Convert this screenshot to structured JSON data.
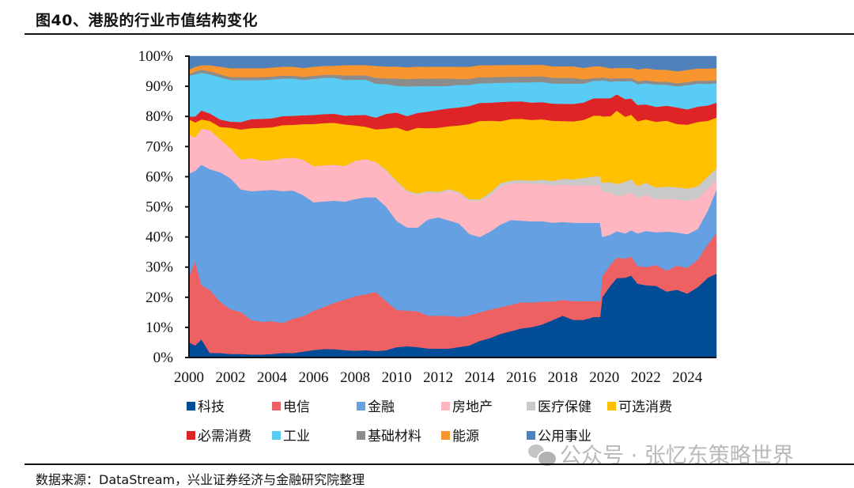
{
  "title": "图40、港股的行业市值结构变化",
  "source": "数据来源：DataStream，兴业证券经济与金融研究院整理",
  "watermark": "公众号 · 张忆东策略世界",
  "chart_data": {
    "type": "area",
    "stacked": true,
    "percent": true,
    "title": "图40、港股的行业市值结构变化",
    "xlabel": "",
    "ylabel": "",
    "xlim": [
      2000.0,
      2025.4
    ],
    "ylim": [
      0,
      100
    ],
    "x_ticks": [
      "2000",
      "2002",
      "2004",
      "2006",
      "2008",
      "2010",
      "2012",
      "2014",
      "2016",
      "2018",
      "2020",
      "2022",
      "2024"
    ],
    "y_ticks": [
      "0%",
      "10%",
      "20%",
      "30%",
      "40%",
      "50%",
      "60%",
      "70%",
      "80%",
      "90%",
      "100%"
    ],
    "grid": false,
    "legend_position": "bottom",
    "x": [
      2000.0,
      2000.3,
      2000.6,
      2001.0,
      2001.5,
      2002.0,
      2002.5,
      2003.0,
      2003.5,
      2004.0,
      2004.5,
      2005.0,
      2005.5,
      2006.0,
      2006.5,
      2007.0,
      2007.5,
      2008.0,
      2008.5,
      2009.0,
      2009.5,
      2010.0,
      2010.5,
      2011.0,
      2011.5,
      2012.0,
      2012.5,
      2013.0,
      2013.5,
      2014.0,
      2014.5,
      2015.0,
      2015.5,
      2016.0,
      2016.5,
      2017.0,
      2017.5,
      2018.0,
      2018.5,
      2019.0,
      2019.5,
      2019.8,
      2019.9,
      2020.3,
      2020.6,
      2021.0,
      2021.3,
      2021.6,
      2022.0,
      2022.5,
      2023.0,
      2023.5,
      2024.0,
      2024.5,
      2025.0,
      2025.4
    ],
    "series": [
      {
        "name": "科技",
        "color": "#004C97",
        "values": [
          5,
          4,
          6,
          1.5,
          1.5,
          1.2,
          1.2,
          1,
          1,
          1.2,
          1.5,
          1.5,
          2,
          2.5,
          2.8,
          2.8,
          2.5,
          2.3,
          2.5,
          2.2,
          2.5,
          3.5,
          3.8,
          3.5,
          3,
          3,
          3,
          3.5,
          4,
          5.5,
          6.5,
          8,
          9,
          10,
          10.5,
          11.5,
          13,
          14.5,
          13,
          13,
          14,
          14,
          20,
          24,
          27,
          27,
          28,
          25,
          24,
          24,
          22,
          22.5,
          21,
          23,
          26,
          28
        ]
      },
      {
        "name": "电信",
        "color": "#EE6163",
        "values": [
          22,
          28,
          18,
          21,
          17,
          15,
          14,
          11.5,
          11,
          11,
          10,
          11.5,
          12,
          13,
          14,
          15.5,
          17,
          18.5,
          19,
          20,
          16.5,
          12.5,
          12,
          12,
          11,
          11,
          11,
          10,
          10,
          9.5,
          9.5,
          9,
          9,
          9,
          8.5,
          8,
          6.5,
          5.5,
          6.5,
          6.5,
          5.5,
          5.5,
          7,
          7,
          7,
          6.5,
          6.5,
          6,
          6,
          7,
          7,
          8,
          8.5,
          9,
          11,
          13.5
        ]
      },
      {
        "name": "金融",
        "color": "#64A0E2",
        "values": [
          34,
          30,
          40,
          40,
          43,
          44,
          41,
          43,
          44,
          44,
          44,
          43,
          41,
          36,
          35,
          34,
          33,
          33,
          33,
          32,
          32,
          30,
          28,
          28,
          32,
          33,
          32,
          31,
          27,
          25,
          26,
          28,
          29,
          28,
          28,
          28,
          27.5,
          27,
          27,
          27,
          27,
          27,
          13,
          10,
          9,
          8.5,
          9,
          11,
          12,
          11,
          13,
          11,
          11,
          10,
          11,
          14.5
        ]
      },
      {
        "name": "房地产",
        "color": "#FFB6C1",
        "values": [
          13,
          11,
          12,
          13,
          11,
          10,
          10,
          11,
          10,
          10,
          11,
          11,
          12,
          12,
          12,
          12,
          12,
          13,
          13,
          12,
          12,
          13,
          12,
          11,
          9,
          8,
          10,
          10,
          11,
          12,
          12,
          13,
          12.5,
          13,
          13,
          13,
          13,
          13,
          13,
          13,
          13,
          13,
          15,
          14,
          12,
          13,
          13,
          12,
          12,
          11,
          11,
          11,
          11,
          10,
          7,
          3.5
        ]
      },
      {
        "name": "医疗保健",
        "color": "#C9C9C9",
        "values": [
          0,
          0,
          0,
          0,
          0,
          0,
          0,
          0,
          0,
          0,
          0,
          0,
          0,
          0,
          0,
          0,
          0,
          0,
          0,
          0,
          0.5,
          0.5,
          0.5,
          0.5,
          0.5,
          0.5,
          0.5,
          0.5,
          0.5,
          0.5,
          1,
          1,
          1,
          1,
          1,
          1.5,
          1.5,
          2,
          2,
          2.5,
          3,
          3,
          3,
          3.5,
          4,
          4.5,
          4.5,
          4,
          4,
          4,
          4,
          4,
          4,
          4,
          4,
          3.5
        ]
      },
      {
        "name": "可选消费",
        "color": "#FFC000",
        "values": [
          5,
          5,
          3,
          3,
          4,
          7,
          10,
          10,
          11,
          11,
          11,
          11,
          12,
          14,
          14,
          14,
          14,
          12,
          11,
          11,
          14,
          18,
          20,
          22,
          21,
          21.5,
          21,
          22,
          25,
          26,
          24,
          21,
          21,
          21,
          21,
          21,
          21,
          20,
          20,
          20,
          21,
          21,
          22,
          22,
          25,
          22,
          22,
          22,
          21,
          22,
          22,
          21,
          21,
          21,
          18,
          17
        ]
      },
      {
        "name": "必需消费",
        "color": "#DE2426",
        "values": [
          1,
          2,
          3,
          2.5,
          2.5,
          2,
          2.5,
          3,
          3,
          3,
          3,
          3,
          3,
          3,
          3,
          3,
          3,
          3.5,
          4,
          4,
          5,
          5,
          5,
          5,
          5.5,
          6,
          6,
          6,
          6,
          6,
          6,
          6.5,
          6,
          6,
          6,
          6,
          6,
          6,
          6,
          6,
          6,
          6,
          6,
          6,
          5.5,
          6,
          5.5,
          5.5,
          5,
          5,
          5,
          5.5,
          5,
          5,
          5,
          5
        ]
      },
      {
        "name": "工业",
        "color": "#59CCF5",
        "values": [
          13.5,
          14,
          12.5,
          13,
          14,
          14,
          14,
          13,
          13,
          13,
          12.5,
          12.5,
          12,
          12,
          12,
          12,
          12,
          12,
          12,
          11.5,
          10,
          9,
          10,
          9,
          8.5,
          8,
          7.5,
          7.5,
          7,
          6.5,
          6.5,
          6.5,
          6.5,
          6.5,
          7,
          7,
          7,
          7,
          7,
          6.5,
          6,
          6,
          6,
          5.5,
          4.5,
          6,
          6,
          7,
          7,
          7.5,
          7,
          7,
          8,
          7.5,
          7,
          6.5
        ]
      },
      {
        "name": "基础材料",
        "color": "#8C8C8C",
        "values": [
          0.5,
          1,
          1,
          1,
          1,
          1,
          1,
          1,
          1,
          1,
          1,
          1,
          1,
          1,
          1,
          1,
          1.5,
          1.5,
          1.5,
          2,
          2,
          2.5,
          2.5,
          2.5,
          2.5,
          2.5,
          2.5,
          2,
          2,
          2,
          2,
          2,
          2,
          2,
          2,
          2,
          2,
          2,
          2,
          1.5,
          1,
          1,
          1,
          1,
          1,
          1,
          1,
          1,
          1,
          1,
          1,
          1,
          1,
          1,
          1,
          1
        ]
      },
      {
        "name": "能源",
        "color": "#F9952F",
        "values": [
          1.5,
          1.5,
          1.5,
          2,
          2.5,
          3,
          3,
          3,
          3,
          3,
          3,
          3,
          3,
          3,
          3,
          3,
          3.5,
          3.5,
          3.5,
          4,
          4,
          4,
          4,
          4,
          4,
          4,
          4,
          4,
          4,
          4,
          4,
          4,
          4,
          4,
          4,
          4,
          4,
          4,
          4,
          4,
          4,
          4,
          3.5,
          3.5,
          3.5,
          3.5,
          3.5,
          4,
          4,
          4,
          4,
          4,
          4,
          4,
          4,
          4
        ]
      },
      {
        "name": "公用事业",
        "color": "#4F81BD",
        "values": [
          4.5,
          3.5,
          3,
          3,
          3.5,
          4,
          4,
          4,
          4,
          3.8,
          3.5,
          3.5,
          4,
          3.5,
          3.2,
          3.2,
          3,
          3,
          3,
          3.3,
          3.5,
          3.5,
          3.7,
          3.5,
          3.5,
          3.5,
          3.5,
          3.5,
          3.5,
          3,
          3,
          3,
          3,
          3,
          3,
          3,
          3.5,
          3.5,
          3.5,
          4,
          3.5,
          3.5,
          3.5,
          4,
          4,
          4,
          4,
          4.5,
          4,
          4.5,
          4.5,
          5,
          4.5,
          4,
          4,
          4
        ]
      }
    ]
  },
  "legend": {
    "rows": [
      [
        "科技",
        "电信",
        "金融",
        "房地产",
        "医疗保健",
        "可选消费"
      ],
      [
        "必需消费",
        "工业",
        "基础材料",
        "能源",
        "公用事业"
      ]
    ]
  }
}
